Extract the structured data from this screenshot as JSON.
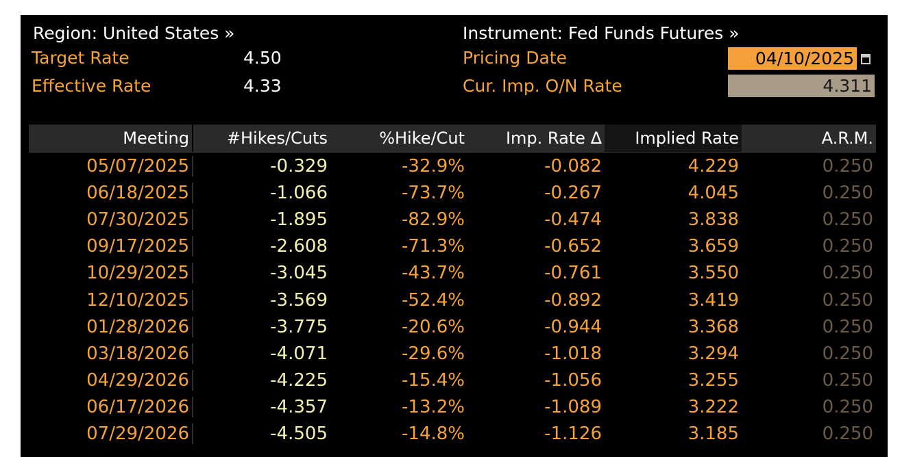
{
  "header": {
    "region_label": "Region: United States »",
    "instrument_label": "Instrument: Fed Funds Futures »",
    "target_rate_label": "Target Rate",
    "target_rate_value": "4.50",
    "effective_rate_label": "Effective Rate",
    "effective_rate_value": "4.33",
    "pricing_date_label": "Pricing Date",
    "pricing_date_value": "04/10/2025",
    "cur_imp_label": "Cur. Imp. O/N Rate",
    "cur_imp_value": "4.311"
  },
  "table": {
    "columns": [
      "Meeting",
      "#Hikes/Cuts",
      "%Hike/Cut",
      "Imp. Rate Δ",
      "Implied Rate",
      "A.R.M."
    ],
    "rows": [
      [
        "05/07/2025",
        "-0.329",
        "-32.9%",
        "-0.082",
        "4.229",
        "0.250"
      ],
      [
        "06/18/2025",
        "-1.066",
        "-73.7%",
        "-0.267",
        "4.045",
        "0.250"
      ],
      [
        "07/30/2025",
        "-1.895",
        "-82.9%",
        "-0.474",
        "3.838",
        "0.250"
      ],
      [
        "09/17/2025",
        "-2.608",
        "-71.3%",
        "-0.652",
        "3.659",
        "0.250"
      ],
      [
        "10/29/2025",
        "-3.045",
        "-43.7%",
        "-0.761",
        "3.550",
        "0.250"
      ],
      [
        "12/10/2025",
        "-3.569",
        "-52.4%",
        "-0.892",
        "3.419",
        "0.250"
      ],
      [
        "01/28/2026",
        "-3.775",
        "-20.6%",
        "-0.944",
        "3.368",
        "0.250"
      ],
      [
        "03/18/2026",
        "-4.071",
        "-29.6%",
        "-1.018",
        "3.294",
        "0.250"
      ],
      [
        "04/29/2026",
        "-4.225",
        "-15.4%",
        "-1.056",
        "3.255",
        "0.250"
      ],
      [
        "06/17/2026",
        "-4.357",
        "-13.2%",
        "-1.089",
        "3.222",
        "0.250"
      ],
      [
        "07/29/2026",
        "-4.505",
        "-14.8%",
        "-1.126",
        "3.185",
        "0.250"
      ]
    ]
  },
  "icons": {
    "calendar": "calendar-icon"
  },
  "colors": {
    "accent_orange": "#f4a23a",
    "hikes_yellow": "#f4f2b0",
    "arm_dim": "#6b5b45",
    "input_bg": "#f3a03c",
    "readonly_bg": "#a89b88"
  }
}
